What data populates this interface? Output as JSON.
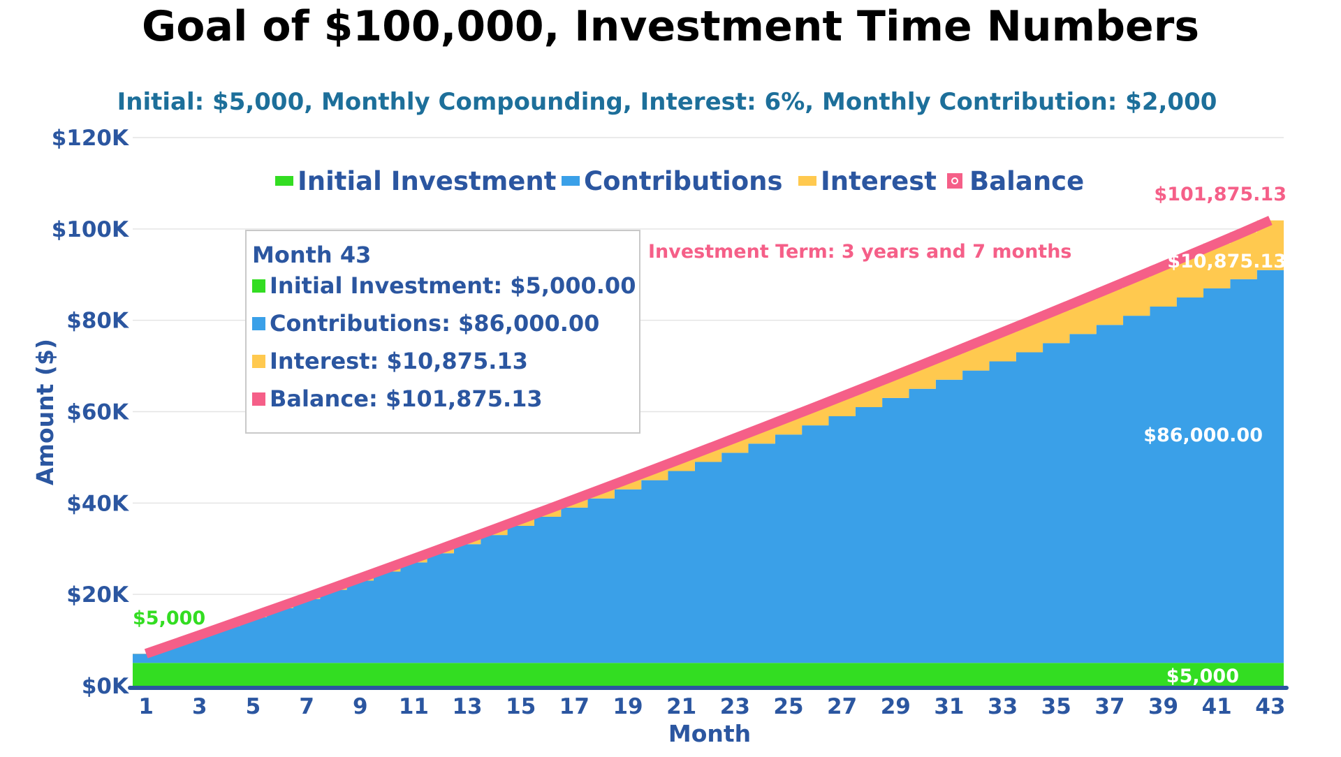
{
  "chart_data": {
    "type": "area",
    "title": "Goal of $100,000, Investment Time Numbers",
    "subtitle": "Initial: $5,000, Monthly Compounding, Interest: 6%, Monthly Contribution: $2,000",
    "xlabel": "Month",
    "ylabel": "Amount ($)",
    "ylim": [
      0,
      120000
    ],
    "yticks": [
      "$0K",
      "$20K",
      "$40K",
      "$60K",
      "$80K",
      "$100K",
      "$120K"
    ],
    "xticks": [
      "1",
      "3",
      "5",
      "7",
      "9",
      "11",
      "13",
      "15",
      "17",
      "19",
      "21",
      "23",
      "25",
      "27",
      "29",
      "31",
      "33",
      "35",
      "37",
      "39",
      "41",
      "43"
    ],
    "x": [
      1,
      2,
      3,
      4,
      5,
      6,
      7,
      8,
      9,
      10,
      11,
      12,
      13,
      14,
      15,
      16,
      17,
      18,
      19,
      20,
      21,
      22,
      23,
      24,
      25,
      26,
      27,
      28,
      29,
      30,
      31,
      32,
      33,
      34,
      35,
      36,
      37,
      38,
      39,
      40,
      41,
      42,
      43
    ],
    "grid": true,
    "legend_position": "top",
    "series": [
      {
        "name": "Initial Investment",
        "color": "#33dd22",
        "values": [
          5000,
          5000,
          5000,
          5000,
          5000,
          5000,
          5000,
          5000,
          5000,
          5000,
          5000,
          5000,
          5000,
          5000,
          5000,
          5000,
          5000,
          5000,
          5000,
          5000,
          5000,
          5000,
          5000,
          5000,
          5000,
          5000,
          5000,
          5000,
          5000,
          5000,
          5000,
          5000,
          5000,
          5000,
          5000,
          5000,
          5000,
          5000,
          5000,
          5000,
          5000,
          5000,
          5000
        ]
      },
      {
        "name": "Contributions",
        "color": "#3aa0e8",
        "values": [
          2000,
          4000,
          6000,
          8000,
          10000,
          12000,
          14000,
          16000,
          18000,
          20000,
          22000,
          24000,
          26000,
          28000,
          30000,
          32000,
          34000,
          36000,
          38000,
          40000,
          42000,
          44000,
          46000,
          48000,
          50000,
          52000,
          54000,
          56000,
          58000,
          60000,
          62000,
          64000,
          66000,
          68000,
          70000,
          72000,
          74000,
          76000,
          78000,
          80000,
          82000,
          84000,
          86000
        ]
      },
      {
        "name": "Interest",
        "color": "#ffc94f",
        "values": [
          25,
          60,
          105,
          160,
          226,
          301,
          387,
          484,
          590,
          707,
          834,
          972,
          1120,
          1279,
          1449,
          1629,
          1820,
          2022,
          2235,
          2459,
          2694,
          2941,
          3198,
          3467,
          3747,
          4038,
          4341,
          4656,
          4982,
          5320,
          5669,
          6031,
          6404,
          6789,
          7187,
          7596,
          8018,
          8452,
          8898,
          9357,
          9829,
          10313,
          10875.13
        ]
      },
      {
        "name": "Balance",
        "color": "#f55f88",
        "values": [
          7025,
          9060,
          11105,
          13160,
          15226,
          17301,
          19387,
          21484,
          23590,
          25707,
          27834,
          29972,
          32120,
          34279,
          36449,
          38629,
          40820,
          43022,
          45235,
          47459,
          49694,
          51941,
          54198,
          56467,
          58747,
          61038,
          63341,
          65656,
          67982,
          70320,
          72669,
          75031,
          77404,
          79789,
          82187,
          84596,
          87018,
          89452,
          91898,
          94357,
          96829,
          99313,
          101875.13
        ]
      }
    ],
    "tooltip": {
      "title": "Month 43",
      "items": [
        {
          "label": "Initial Investment: $5,000.00",
          "color": "#33dd22"
        },
        {
          "label": "Contributions: $86,000.00",
          "color": "#3aa0e8"
        },
        {
          "label": "Interest: $10,875.13",
          "color": "#ffc94f"
        },
        {
          "label": "Balance: $101,875.13",
          "color": "#f55f88"
        }
      ]
    },
    "annotations": {
      "term": "Investment Term: 3 years and 7 months",
      "start_balance": "$5,000",
      "end_balance": "$101,875.13",
      "end_interest": "$10,875.13",
      "end_contributions": "$86,000.00",
      "end_initial": "$5,000"
    },
    "colors": {
      "axis_text": "#2b56a0",
      "subtitle": "#1d6f9a",
      "term": "#f55f88",
      "start_label": "#33dd22",
      "grid": "#e4e4e4",
      "axis_line": "#2b56a0"
    }
  }
}
